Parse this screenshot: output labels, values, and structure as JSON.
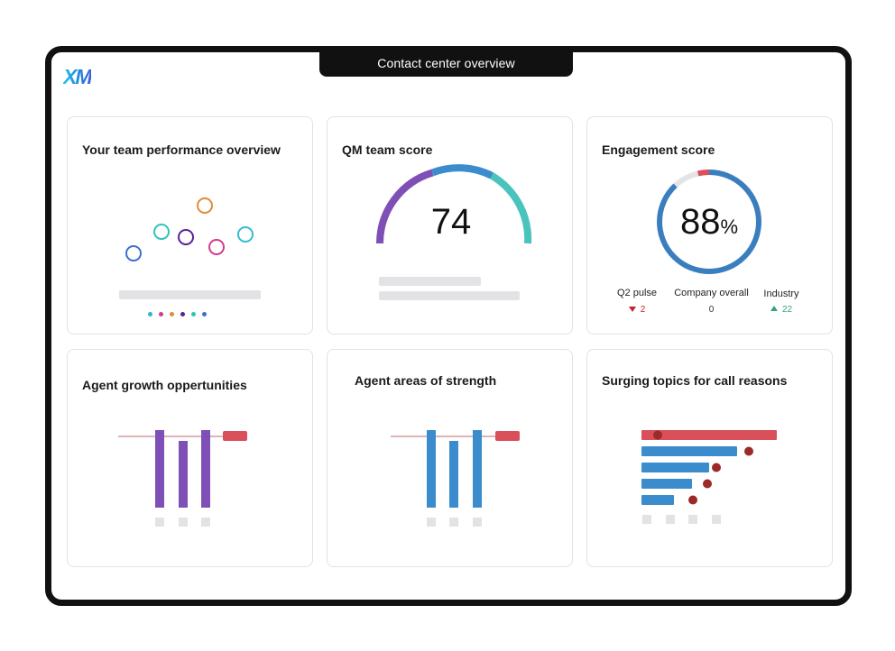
{
  "window": {
    "title": "Contact center overview",
    "logo": "XM"
  },
  "colors": {
    "purple": "#7e4fb5",
    "blue": "#3b8ccc",
    "teal": "#4bc3bd",
    "red": "#d9505a",
    "dark_red": "#9b2a28",
    "grey": "#e3e3e5"
  },
  "cards": {
    "team_performance": {
      "title": "Your team performance overview"
    },
    "qm_score": {
      "title": "QM team score",
      "value": "74",
      "fraction": 0.74
    },
    "engagement": {
      "title": "Engagement score",
      "value": "88",
      "unit": "%",
      "fraction": 0.88,
      "metrics": [
        {
          "label": "Q2 pulse",
          "value": "2",
          "trend": "down"
        },
        {
          "label": "Company overall",
          "value": "0",
          "trend": "none"
        },
        {
          "label": "Industry",
          "value": "22",
          "trend": "up"
        }
      ]
    },
    "growth": {
      "title": "Agent growth oppertunities"
    },
    "strength": {
      "title": "Agent areas of strength"
    },
    "surging": {
      "title": "Surging topics for call reasons"
    }
  }
}
